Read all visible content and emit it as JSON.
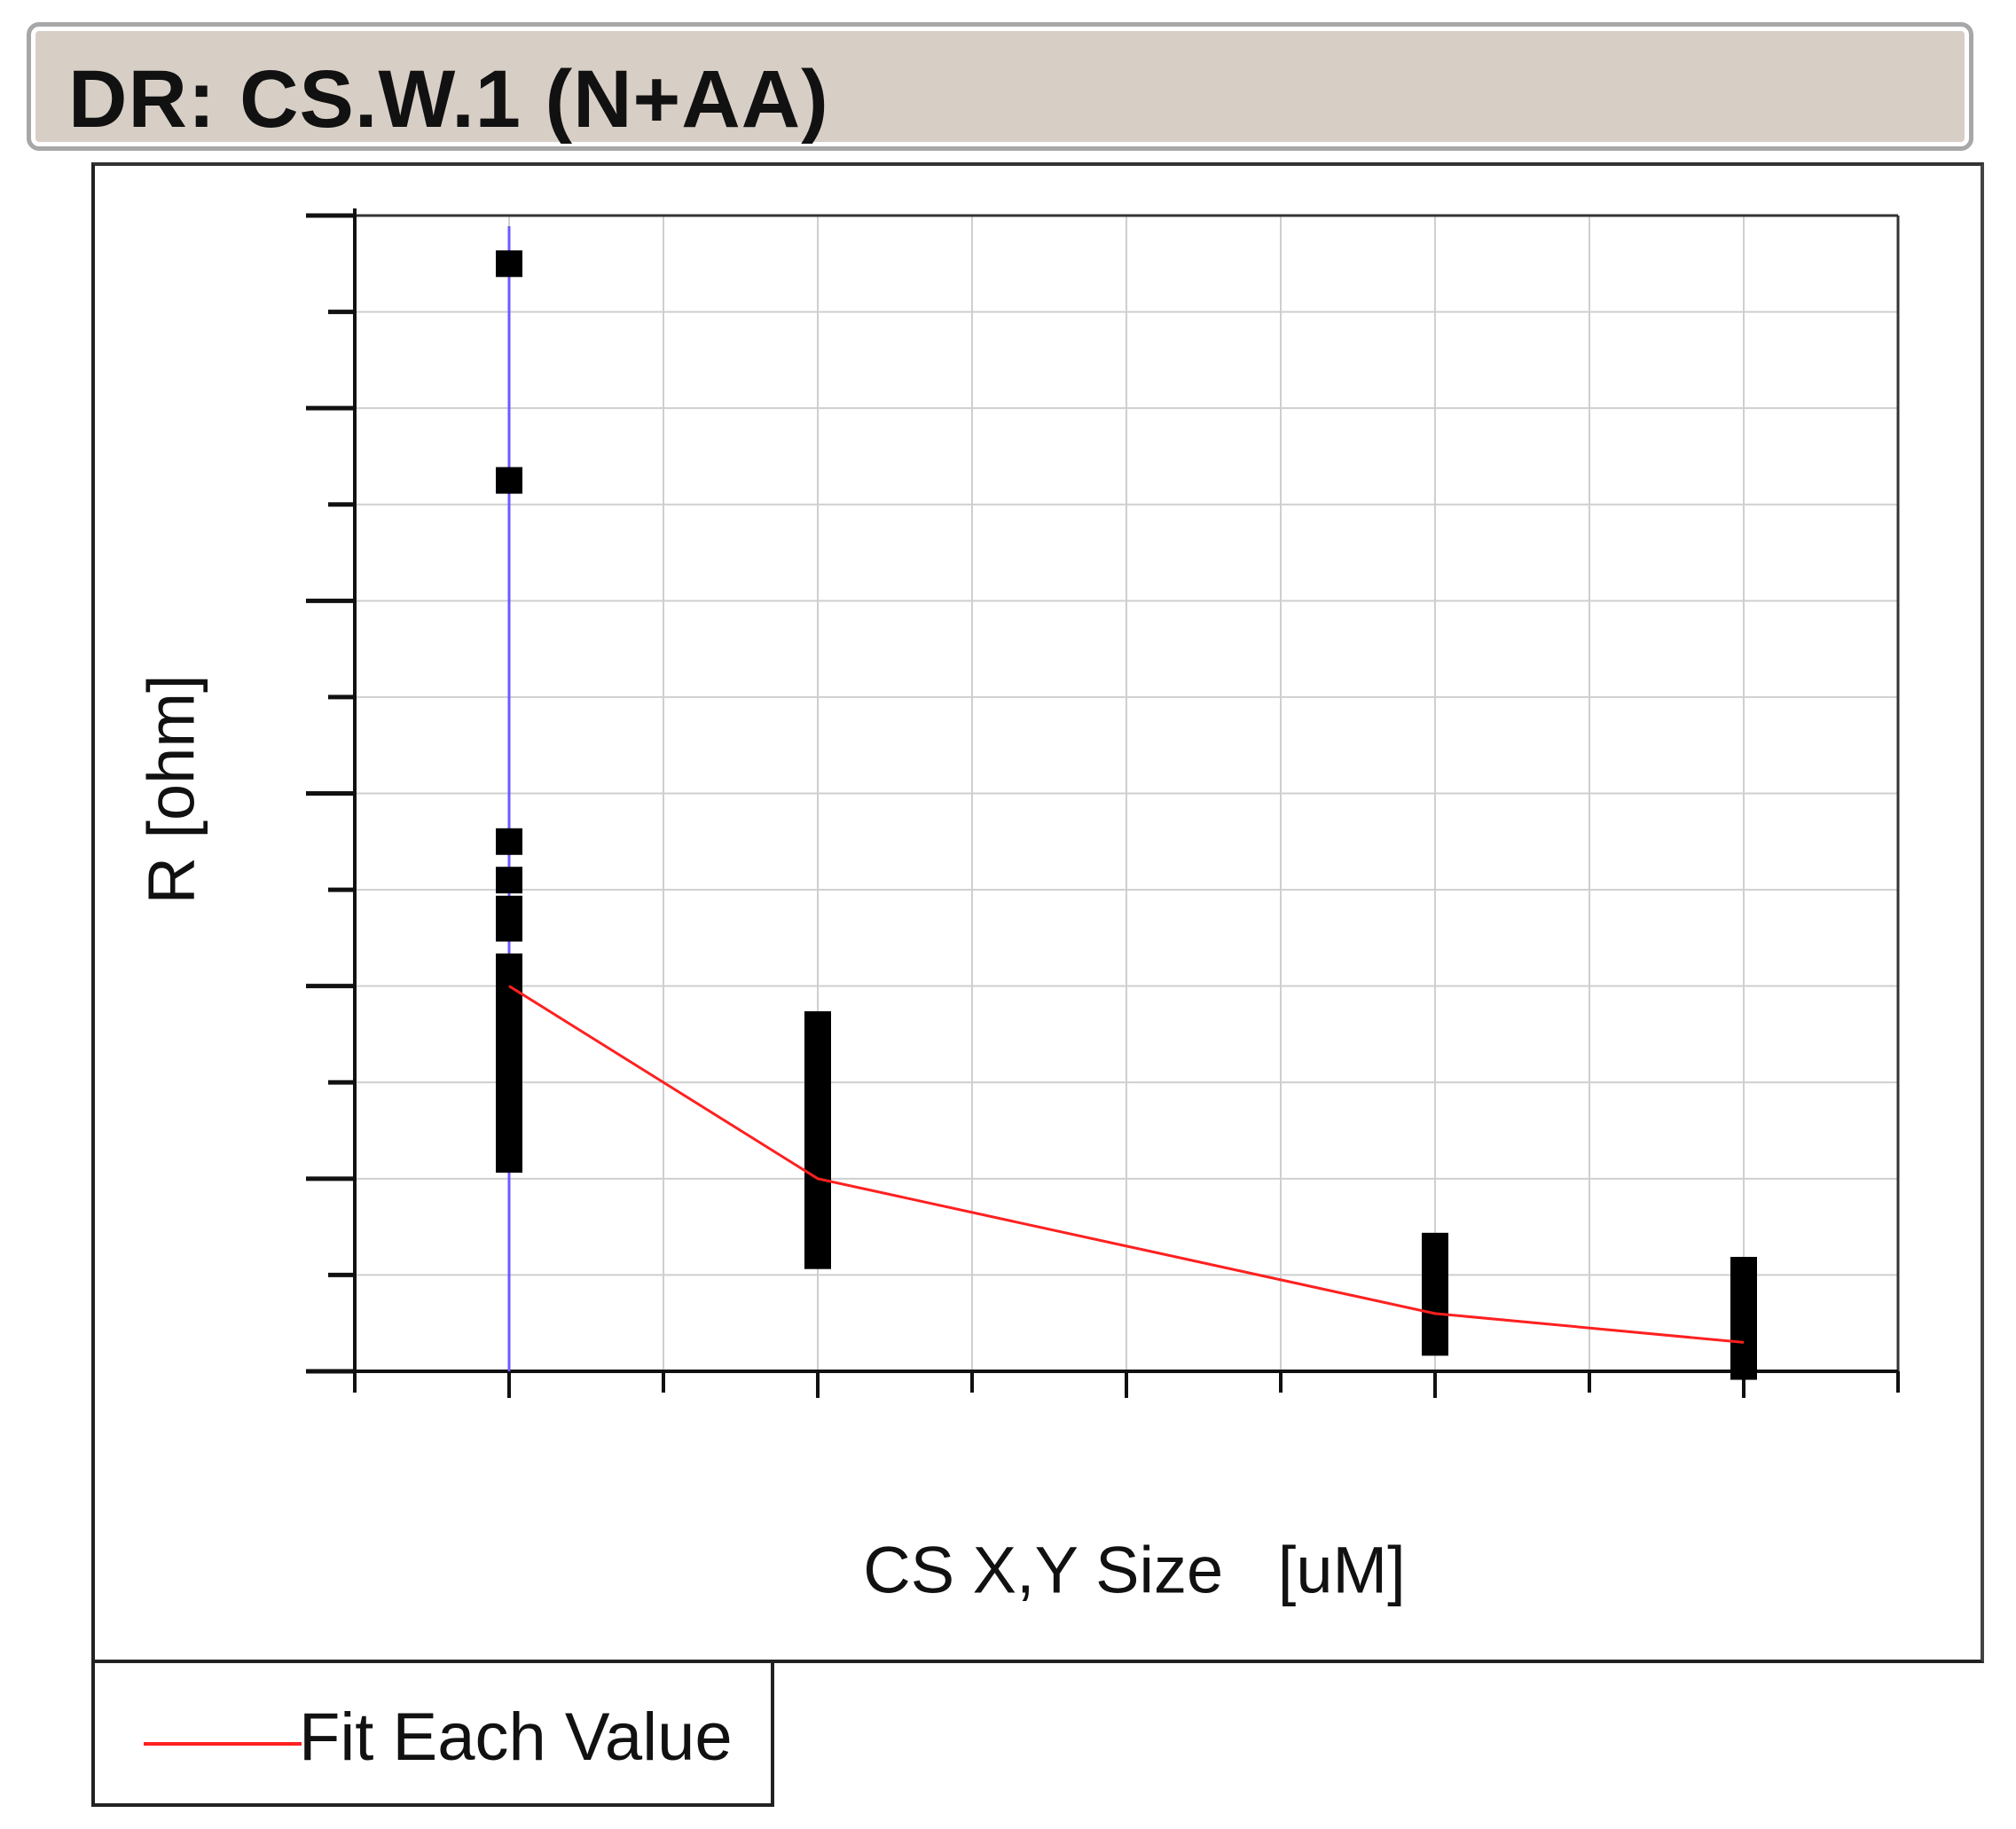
{
  "title": "DR: CS.W.1 (N+AA)",
  "chart_data": {
    "type": "scatter",
    "xlabel": "CS X,Y Size   [uM]",
    "ylabel": "R [ohm]",
    "xlim": [
      0,
      10
    ],
    "ylim": [
      0,
      12
    ],
    "grid": true,
    "legend_position": "bottom-left",
    "series": [
      {
        "name": "",
        "type": "scatter",
        "color": "#000000",
        "marker": "square",
        "points": [
          [
            1,
            11.5
          ],
          [
            1,
            9.25
          ],
          [
            1,
            5.5
          ],
          [
            1,
            5.1
          ],
          [
            1,
            4.8
          ],
          [
            1,
            4.6
          ],
          [
            1,
            4.2
          ],
          [
            1,
            4.0
          ],
          [
            1,
            3.8
          ],
          [
            1,
            3.6
          ],
          [
            1,
            3.4
          ],
          [
            1,
            3.2
          ],
          [
            1,
            3.0
          ],
          [
            1,
            2.8
          ],
          [
            1,
            2.6
          ],
          [
            1,
            2.4
          ],
          [
            1,
            2.2
          ],
          [
            3,
            3.6
          ],
          [
            3,
            3.4
          ],
          [
            3,
            3.2
          ],
          [
            3,
            3.0
          ],
          [
            3,
            2.8
          ],
          [
            3,
            2.6
          ],
          [
            3,
            2.4
          ],
          [
            3,
            2.2
          ],
          [
            3,
            2.0
          ],
          [
            3,
            1.8
          ],
          [
            3,
            1.6
          ],
          [
            3,
            1.4
          ],
          [
            3,
            1.2
          ],
          [
            7,
            1.3
          ],
          [
            7,
            1.1
          ],
          [
            7,
            0.9
          ],
          [
            7,
            0.7
          ],
          [
            7,
            0.5
          ],
          [
            7,
            0.3
          ],
          [
            9,
            1.05
          ],
          [
            9,
            0.85
          ],
          [
            9,
            0.65
          ],
          [
            9,
            0.45
          ],
          [
            9,
            0.25
          ],
          [
            9,
            0.05
          ]
        ]
      },
      {
        "name": "Fit Each Value",
        "type": "line",
        "color": "#ff2020",
        "points": [
          [
            1,
            4.0
          ],
          [
            3,
            2.0
          ],
          [
            7,
            0.6
          ],
          [
            9,
            0.3
          ]
        ]
      }
    ],
    "marker_line": {
      "x": 1,
      "color": "#6a5cff"
    }
  }
}
